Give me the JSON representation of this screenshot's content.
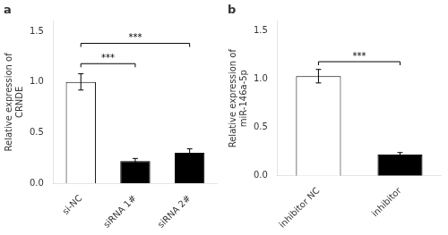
{
  "chart_data": [
    {
      "type": "bar",
      "title": "a",
      "categories": [
        "si-NC",
        "siRNA 1#",
        "siRNA 2#"
      ],
      "values": [
        1.0,
        0.22,
        0.3
      ],
      "errors": [
        0.08,
        0.025,
        0.04
      ],
      "colors": [
        "white",
        "black",
        "black"
      ],
      "ylabel": "Relative expression of\nCRNDE",
      "ylim": [
        0,
        1.6
      ],
      "yticks": [
        {
          "value": 0,
          "label": "0.0"
        },
        0.5,
        {
          "value": 1,
          "label": "1.0"
        },
        1.5
      ],
      "grid": false,
      "annotations": [
        {
          "from": "si-NC",
          "to": "siRNA 1#",
          "y": 1.18,
          "label": "***"
        },
        {
          "from": "si-NC",
          "to": "siRNA 2#",
          "y": 1.38,
          "label": "***"
        }
      ]
    },
    {
      "type": "bar",
      "title": "b",
      "categories": [
        "inhibitor NC",
        "inhibitor"
      ],
      "values": [
        1.03,
        0.22
      ],
      "errors": [
        0.07,
        0.02
      ],
      "colors": [
        "white",
        "black"
      ],
      "ylabel": "Relative expression of\nmiR-146a-5p",
      "ylim": [
        0,
        1.6
      ],
      "yticks": [
        {
          "value": 0,
          "label": "0.0"
        },
        0.5,
        {
          "value": 1,
          "label": "1.0"
        },
        1.5
      ],
      "grid": false,
      "annotations": [
        {
          "from": "inhibitor NC",
          "to": "inhibitor",
          "y": 1.18,
          "label": "***"
        }
      ]
    }
  ]
}
